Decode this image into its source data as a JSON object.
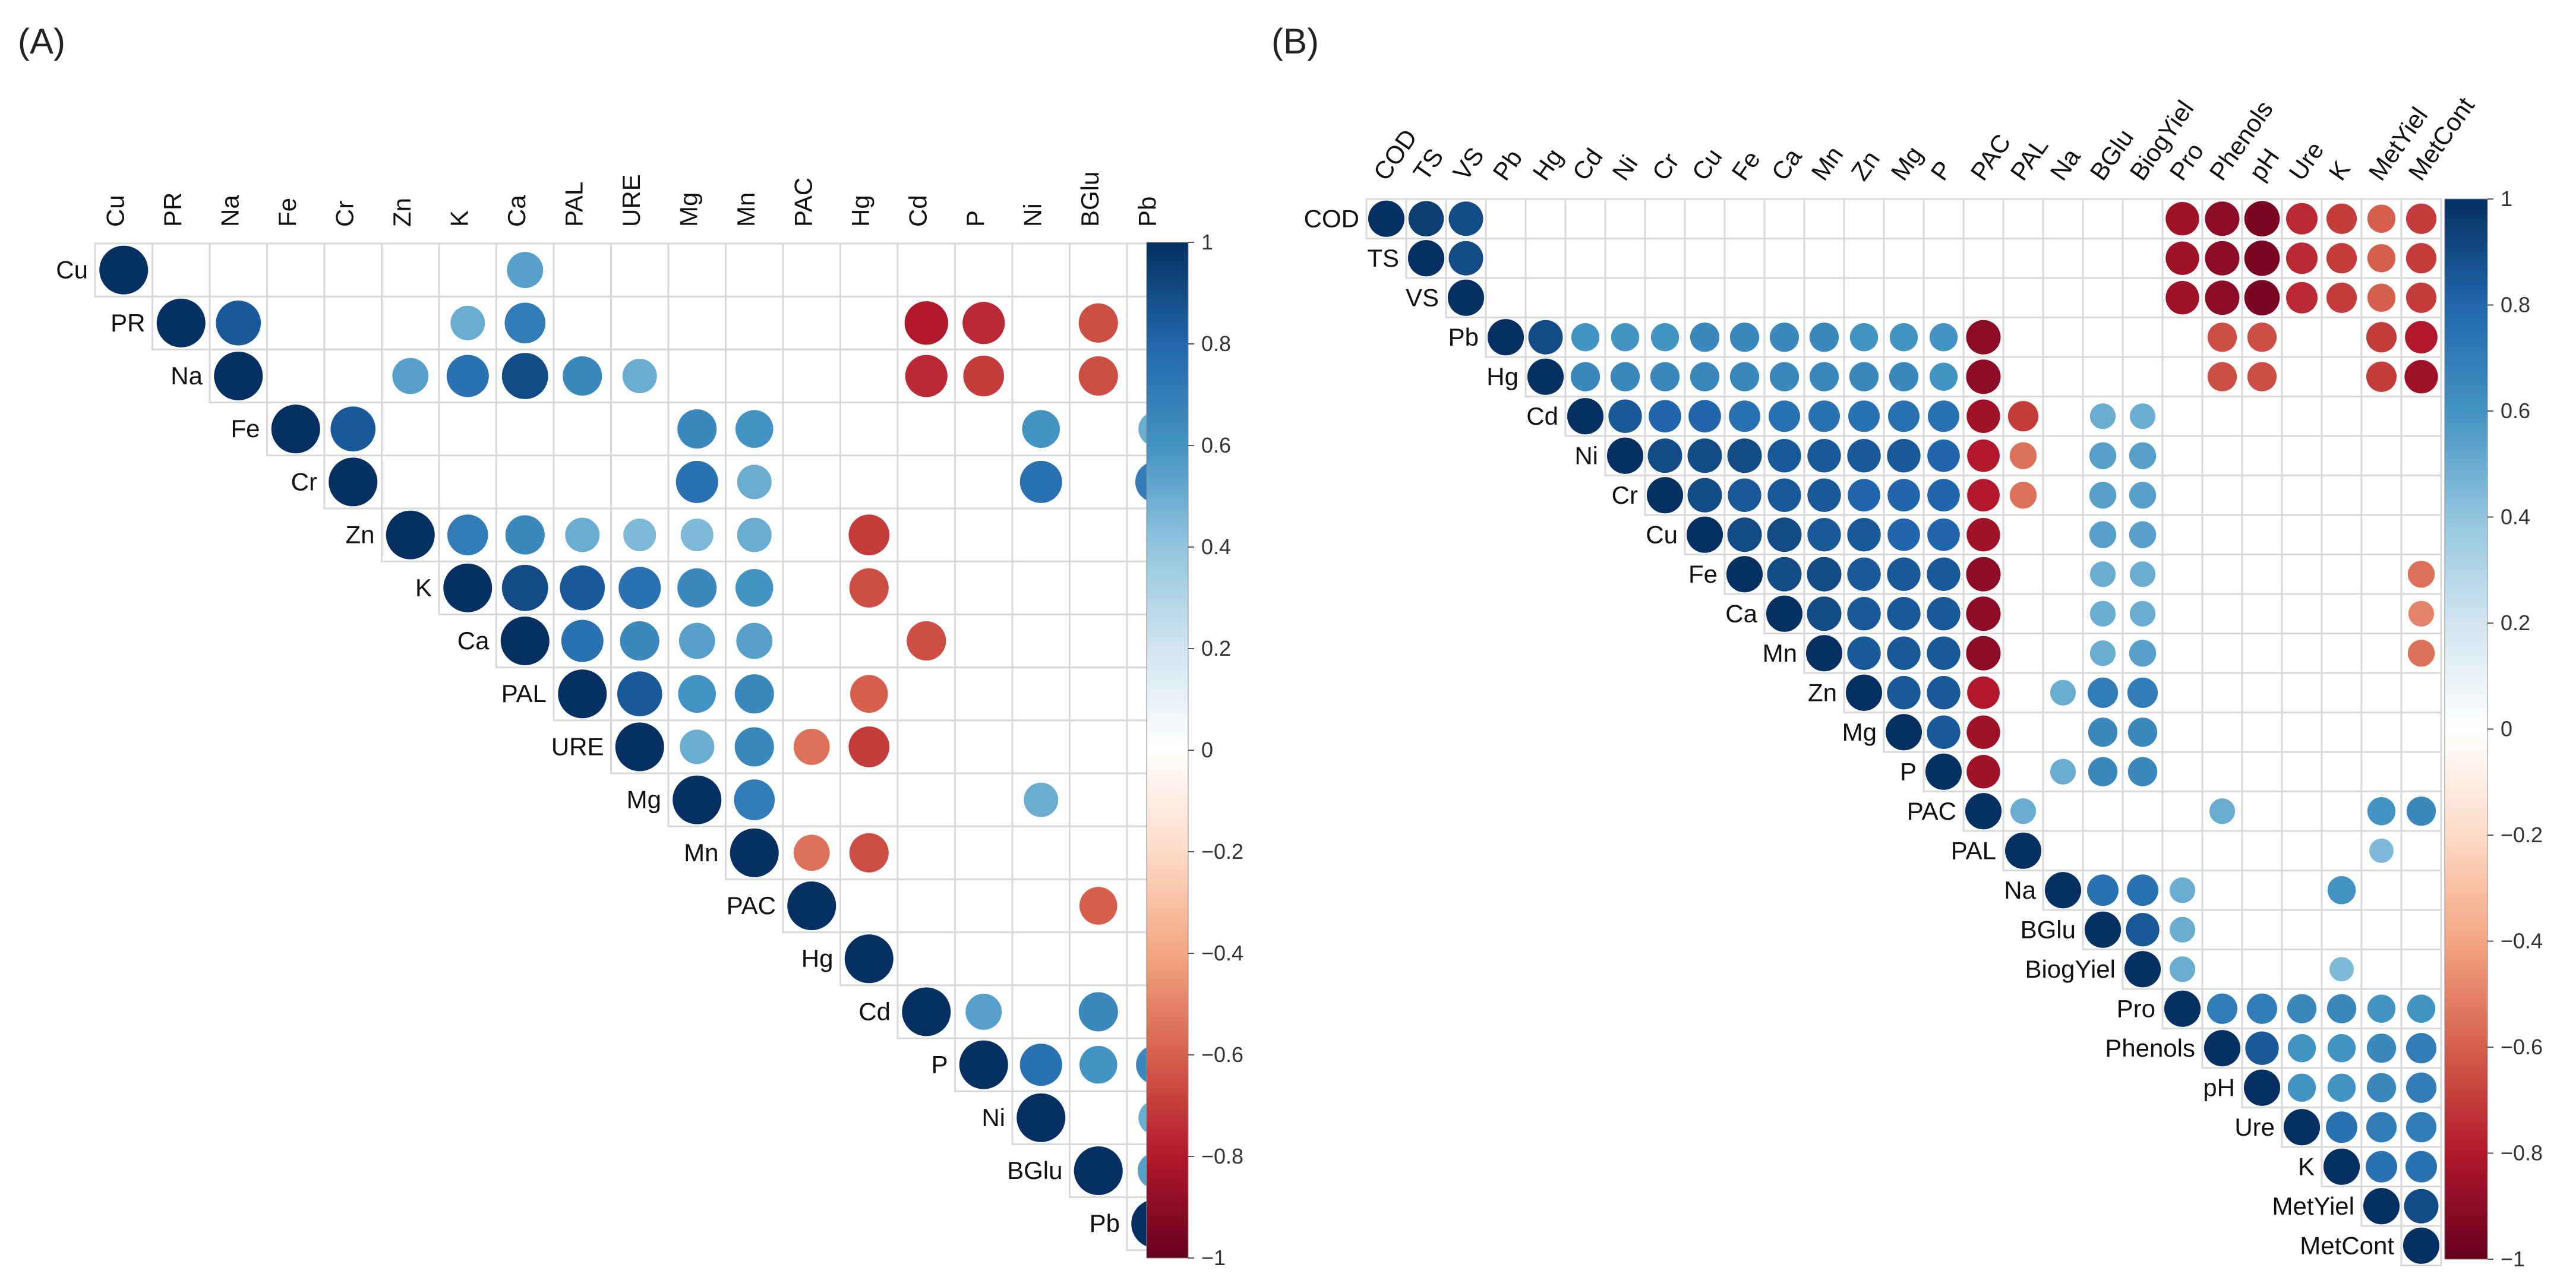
{
  "colors": {
    "scale": [
      "#67001F",
      "#B2182B",
      "#D6604D",
      "#F4A582",
      "#FDDBC7",
      "#FFFFFF",
      "#D1E5F0",
      "#92C5DE",
      "#4393C3",
      "#2166AC",
      "#053061"
    ],
    "grid": "#d9d9d9",
    "text": "#111111"
  },
  "chart_data": [
    {
      "panel": "(A)",
      "type": "heatmap",
      "subtype": "correlogram-upper-triangle",
      "variables": [
        "Cu",
        "PR",
        "Na",
        "Fe",
        "Cr",
        "Zn",
        "K",
        "Ca",
        "PAL",
        "URE",
        "Mg",
        "Mn",
        "PAC",
        "Hg",
        "Cd",
        "P",
        "Ni",
        "BGlu",
        "Pb"
      ],
      "colorbar": {
        "min": -1,
        "max": 1,
        "ticks": [
          "1",
          "0.8",
          "0.6",
          "0.4",
          "0.2",
          "0",
          "−0.2",
          "−0.4",
          "−0.6",
          "−0.8",
          "−1"
        ]
      },
      "cells": [
        [
          "Cu",
          "Ca",
          0.55
        ],
        [
          "PR",
          "Na",
          0.85
        ],
        [
          "PR",
          "K",
          0.5
        ],
        [
          "PR",
          "Ca",
          0.7
        ],
        [
          "PR",
          "Cd",
          -0.8
        ],
        [
          "PR",
          "P",
          -0.75
        ],
        [
          "PR",
          "BGlu",
          -0.65
        ],
        [
          "Na",
          "Zn",
          0.55
        ],
        [
          "Na",
          "K",
          0.75
        ],
        [
          "Na",
          "Ca",
          0.9
        ],
        [
          "Na",
          "PAL",
          0.65
        ],
        [
          "Na",
          "URE",
          0.5
        ],
        [
          "Na",
          "Cd",
          -0.75
        ],
        [
          "Na",
          "P",
          -0.7
        ],
        [
          "Na",
          "BGlu",
          -0.65
        ],
        [
          "Fe",
          "Cr",
          0.85
        ],
        [
          "Fe",
          "Mg",
          0.65
        ],
        [
          "Fe",
          "Mn",
          0.6
        ],
        [
          "Fe",
          "Ni",
          0.6
        ],
        [
          "Fe",
          "Pb",
          0.5
        ],
        [
          "Cr",
          "Mg",
          0.75
        ],
        [
          "Cr",
          "Mn",
          0.5
        ],
        [
          "Cr",
          "Ni",
          0.75
        ],
        [
          "Cr",
          "Pb",
          0.7
        ],
        [
          "Zn",
          "K",
          0.7
        ],
        [
          "Zn",
          "Ca",
          0.65
        ],
        [
          "Zn",
          "PAL",
          0.5
        ],
        [
          "Zn",
          "URE",
          0.45
        ],
        [
          "Zn",
          "Mg",
          0.45
        ],
        [
          "Zn",
          "Mn",
          0.5
        ],
        [
          "Zn",
          "Hg",
          -0.7
        ],
        [
          "K",
          "Ca",
          0.9
        ],
        [
          "K",
          "PAL",
          0.85
        ],
        [
          "K",
          "URE",
          0.75
        ],
        [
          "K",
          "Mg",
          0.65
        ],
        [
          "K",
          "Mn",
          0.6
        ],
        [
          "K",
          "Hg",
          -0.65
        ],
        [
          "Ca",
          "PAL",
          0.75
        ],
        [
          "Ca",
          "URE",
          0.65
        ],
        [
          "Ca",
          "Mg",
          0.55
        ],
        [
          "Ca",
          "Mn",
          0.55
        ],
        [
          "Ca",
          "Cd",
          -0.65
        ],
        [
          "PAL",
          "URE",
          0.85
        ],
        [
          "PAL",
          "Mg",
          0.6
        ],
        [
          "PAL",
          "Mn",
          0.65
        ],
        [
          "PAL",
          "Hg",
          -0.6
        ],
        [
          "URE",
          "Mg",
          0.5
        ],
        [
          "URE",
          "Mn",
          0.65
        ],
        [
          "URE",
          "PAC",
          -0.55
        ],
        [
          "URE",
          "Hg",
          -0.7
        ],
        [
          "Mg",
          "Mn",
          0.7
        ],
        [
          "Mg",
          "Ni",
          0.5
        ],
        [
          "Mn",
          "PAC",
          -0.55
        ],
        [
          "Mn",
          "Hg",
          -0.65
        ],
        [
          "PAC",
          "BGlu",
          -0.6
        ],
        [
          "Cd",
          "P",
          0.55
        ],
        [
          "Cd",
          "BGlu",
          0.65
        ],
        [
          "P",
          "Ni",
          0.75
        ],
        [
          "P",
          "BGlu",
          0.6
        ],
        [
          "P",
          "Pb",
          0.65
        ],
        [
          "Ni",
          "Pb",
          0.5
        ],
        [
          "BGlu",
          "Pb",
          0.55
        ]
      ]
    },
    {
      "panel": "(B)",
      "type": "heatmap",
      "subtype": "correlogram-upper-triangle",
      "variables": [
        "COD",
        "TS",
        "VS",
        "Pb",
        "Hg",
        "Cd",
        "Ni",
        "Cr",
        "Cu",
        "Fe",
        "Ca",
        "Mn",
        "Zn",
        "Mg",
        "P",
        "PAC",
        "PAL",
        "Na",
        "BGlu",
        "BiogYiel",
        "Pro",
        "Phenols",
        "pH",
        "Ure",
        "K",
        "MetYiel",
        "MetCont"
      ],
      "colorbar": {
        "min": -1,
        "max": 1,
        "ticks": [
          "1",
          "0.8",
          "0.6",
          "0.4",
          "0.2",
          "0",
          "−0.2",
          "−0.4",
          "−0.6",
          "−0.8",
          "−1"
        ]
      },
      "cells": [
        [
          "COD",
          "TS",
          0.95
        ],
        [
          "COD",
          "VS",
          0.9
        ],
        [
          "COD",
          "Pro",
          -0.85
        ],
        [
          "COD",
          "Phenols",
          -0.9
        ],
        [
          "COD",
          "pH",
          -0.95
        ],
        [
          "COD",
          "Ure",
          -0.75
        ],
        [
          "COD",
          "K",
          -0.7
        ],
        [
          "COD",
          "MetYiel",
          -0.6
        ],
        [
          "COD",
          "MetCont",
          -0.7
        ],
        [
          "TS",
          "VS",
          0.9
        ],
        [
          "TS",
          "Pro",
          -0.85
        ],
        [
          "TS",
          "Phenols",
          -0.9
        ],
        [
          "TS",
          "pH",
          -0.95
        ],
        [
          "TS",
          "Ure",
          -0.75
        ],
        [
          "TS",
          "K",
          -0.7
        ],
        [
          "TS",
          "MetYiel",
          -0.6
        ],
        [
          "TS",
          "MetCont",
          -0.7
        ],
        [
          "VS",
          "Pro",
          -0.85
        ],
        [
          "VS",
          "Phenols",
          -0.9
        ],
        [
          "VS",
          "pH",
          -0.95
        ],
        [
          "VS",
          "Ure",
          -0.75
        ],
        [
          "VS",
          "K",
          -0.7
        ],
        [
          "VS",
          "MetYiel",
          -0.6
        ],
        [
          "VS",
          "MetCont",
          -0.7
        ],
        [
          "Pb",
          "Hg",
          0.9
        ],
        [
          "Pb",
          "Cd",
          0.6
        ],
        [
          "Pb",
          "Ni",
          0.6
        ],
        [
          "Pb",
          "Cr",
          0.6
        ],
        [
          "Pb",
          "Cu",
          0.65
        ],
        [
          "Pb",
          "Fe",
          0.65
        ],
        [
          "Pb",
          "Ca",
          0.65
        ],
        [
          "Pb",
          "Mn",
          0.65
        ],
        [
          "Pb",
          "Zn",
          0.6
        ],
        [
          "Pb",
          "Mg",
          0.6
        ],
        [
          "Pb",
          "P",
          0.6
        ],
        [
          "Pb",
          "PAC",
          -0.9
        ],
        [
          "Pb",
          "Phenols",
          -0.65
        ],
        [
          "Pb",
          "pH",
          -0.65
        ],
        [
          "Pb",
          "MetYiel",
          -0.7
        ],
        [
          "Pb",
          "MetCont",
          -0.8
        ],
        [
          "Hg",
          "Cd",
          0.65
        ],
        [
          "Hg",
          "Ni",
          0.65
        ],
        [
          "Hg",
          "Cr",
          0.65
        ],
        [
          "Hg",
          "Cu",
          0.65
        ],
        [
          "Hg",
          "Fe",
          0.65
        ],
        [
          "Hg",
          "Ca",
          0.65
        ],
        [
          "Hg",
          "Mn",
          0.65
        ],
        [
          "Hg",
          "Zn",
          0.65
        ],
        [
          "Hg",
          "Mg",
          0.65
        ],
        [
          "Hg",
          "P",
          0.6
        ],
        [
          "Hg",
          "PAC",
          -0.9
        ],
        [
          "Hg",
          "Phenols",
          -0.65
        ],
        [
          "Hg",
          "pH",
          -0.65
        ],
        [
          "Hg",
          "MetYiel",
          -0.7
        ],
        [
          "Hg",
          "MetCont",
          -0.85
        ],
        [
          "Cd",
          "Ni",
          0.85
        ],
        [
          "Cd",
          "Cr",
          0.8
        ],
        [
          "Cd",
          "Cu",
          0.8
        ],
        [
          "Cd",
          "Fe",
          0.75
        ],
        [
          "Cd",
          "Ca",
          0.75
        ],
        [
          "Cd",
          "Mn",
          0.75
        ],
        [
          "Cd",
          "Zn",
          0.75
        ],
        [
          "Cd",
          "Mg",
          0.75
        ],
        [
          "Cd",
          "P",
          0.75
        ],
        [
          "Cd",
          "PAC",
          -0.85
        ],
        [
          "Cd",
          "PAL",
          -0.7
        ],
        [
          "Cd",
          "BGlu",
          0.5
        ],
        [
          "Cd",
          "BiogYiel",
          0.5
        ],
        [
          "Ni",
          "Cr",
          0.9
        ],
        [
          "Ni",
          "Cu",
          0.9
        ],
        [
          "Ni",
          "Fe",
          0.9
        ],
        [
          "Ni",
          "Ca",
          0.85
        ],
        [
          "Ni",
          "Mn",
          0.85
        ],
        [
          "Ni",
          "Zn",
          0.85
        ],
        [
          "Ni",
          "Mg",
          0.85
        ],
        [
          "Ni",
          "P",
          0.8
        ],
        [
          "Ni",
          "PAC",
          -0.8
        ],
        [
          "Ni",
          "PAL",
          -0.55
        ],
        [
          "Ni",
          "BGlu",
          0.55
        ],
        [
          "Ni",
          "BiogYiel",
          0.55
        ],
        [
          "Cr",
          "Cu",
          0.9
        ],
        [
          "Cr",
          "Fe",
          0.85
        ],
        [
          "Cr",
          "Ca",
          0.85
        ],
        [
          "Cr",
          "Mn",
          0.85
        ],
        [
          "Cr",
          "Zn",
          0.8
        ],
        [
          "Cr",
          "Mg",
          0.8
        ],
        [
          "Cr",
          "P",
          0.8
        ],
        [
          "Cr",
          "PAC",
          -0.8
        ],
        [
          "Cr",
          "PAL",
          -0.55
        ],
        [
          "Cr",
          "BGlu",
          0.55
        ],
        [
          "Cr",
          "BiogYiel",
          0.55
        ],
        [
          "Cu",
          "Fe",
          0.9
        ],
        [
          "Cu",
          "Ca",
          0.9
        ],
        [
          "Cu",
          "Mn",
          0.85
        ],
        [
          "Cu",
          "Zn",
          0.85
        ],
        [
          "Cu",
          "Mg",
          0.8
        ],
        [
          "Cu",
          "P",
          0.8
        ],
        [
          "Cu",
          "PAC",
          -0.85
        ],
        [
          "Cu",
          "BGlu",
          0.55
        ],
        [
          "Cu",
          "BiogYiel",
          0.55
        ],
        [
          "Fe",
          "Ca",
          0.9
        ],
        [
          "Fe",
          "Mn",
          0.9
        ],
        [
          "Fe",
          "Zn",
          0.85
        ],
        [
          "Fe",
          "Mg",
          0.85
        ],
        [
          "Fe",
          "P",
          0.85
        ],
        [
          "Fe",
          "PAC",
          -0.9
        ],
        [
          "Fe",
          "BGlu",
          0.5
        ],
        [
          "Fe",
          "BiogYiel",
          0.5
        ],
        [
          "Fe",
          "MetCont",
          -0.55
        ],
        [
          "Ca",
          "Mn",
          0.9
        ],
        [
          "Ca",
          "Zn",
          0.85
        ],
        [
          "Ca",
          "Mg",
          0.85
        ],
        [
          "Ca",
          "P",
          0.85
        ],
        [
          "Ca",
          "PAC",
          -0.9
        ],
        [
          "Ca",
          "BGlu",
          0.5
        ],
        [
          "Ca",
          "BiogYiel",
          0.5
        ],
        [
          "Ca",
          "MetCont",
          -0.5
        ],
        [
          "Mn",
          "Zn",
          0.85
        ],
        [
          "Mn",
          "Mg",
          0.85
        ],
        [
          "Mn",
          "P",
          0.85
        ],
        [
          "Mn",
          "PAC",
          -0.9
        ],
        [
          "Mn",
          "BGlu",
          0.5
        ],
        [
          "Mn",
          "BiogYiel",
          0.55
        ],
        [
          "Mn",
          "MetCont",
          -0.55
        ],
        [
          "Zn",
          "Mg",
          0.85
        ],
        [
          "Zn",
          "P",
          0.85
        ],
        [
          "Zn",
          "PAC",
          -0.8
        ],
        [
          "Zn",
          "Na",
          0.5
        ],
        [
          "Zn",
          "BGlu",
          0.7
        ],
        [
          "Zn",
          "BiogYiel",
          0.7
        ],
        [
          "Mg",
          "P",
          0.85
        ],
        [
          "Mg",
          "PAC",
          -0.85
        ],
        [
          "Mg",
          "BGlu",
          0.65
        ],
        [
          "Mg",
          "BiogYiel",
          0.65
        ],
        [
          "P",
          "PAC",
          -0.85
        ],
        [
          "P",
          "Na",
          0.5
        ],
        [
          "P",
          "BGlu",
          0.65
        ],
        [
          "P",
          "BiogYiel",
          0.65
        ],
        [
          "PAC",
          "PAL",
          0.5
        ],
        [
          "PAC",
          "Phenols",
          0.5
        ],
        [
          "PAC",
          "MetYiel",
          0.6
        ],
        [
          "PAC",
          "MetCont",
          0.65
        ],
        [
          "PAL",
          "MetYiel",
          0.45
        ],
        [
          "Na",
          "BGlu",
          0.75
        ],
        [
          "Na",
          "BiogYiel",
          0.75
        ],
        [
          "Na",
          "Pro",
          0.5
        ],
        [
          "Na",
          "K",
          0.6
        ],
        [
          "BGlu",
          "BiogYiel",
          0.85
        ],
        [
          "BGlu",
          "Pro",
          0.5
        ],
        [
          "BiogYiel",
          "Pro",
          0.5
        ],
        [
          "BiogYiel",
          "K",
          0.45
        ],
        [
          "Pro",
          "Phenols",
          0.7
        ],
        [
          "Pro",
          "pH",
          0.7
        ],
        [
          "Pro",
          "Ure",
          0.65
        ],
        [
          "Pro",
          "K",
          0.65
        ],
        [
          "Pro",
          "MetYiel",
          0.6
        ],
        [
          "Pro",
          "MetCont",
          0.6
        ],
        [
          "Phenols",
          "pH",
          0.85
        ],
        [
          "Phenols",
          "Ure",
          0.6
        ],
        [
          "Phenols",
          "K",
          0.6
        ],
        [
          "Phenols",
          "MetYiel",
          0.65
        ],
        [
          "Phenols",
          "MetCont",
          0.7
        ],
        [
          "pH",
          "Ure",
          0.6
        ],
        [
          "pH",
          "K",
          0.6
        ],
        [
          "pH",
          "MetYiel",
          0.65
        ],
        [
          "pH",
          "MetCont",
          0.7
        ],
        [
          "Ure",
          "K",
          0.75
        ],
        [
          "Ure",
          "MetYiel",
          0.7
        ],
        [
          "Ure",
          "MetCont",
          0.7
        ],
        [
          "K",
          "MetYiel",
          0.75
        ],
        [
          "K",
          "MetCont",
          0.75
        ],
        [
          "MetYiel",
          "MetCont",
          0.9
        ]
      ]
    }
  ]
}
